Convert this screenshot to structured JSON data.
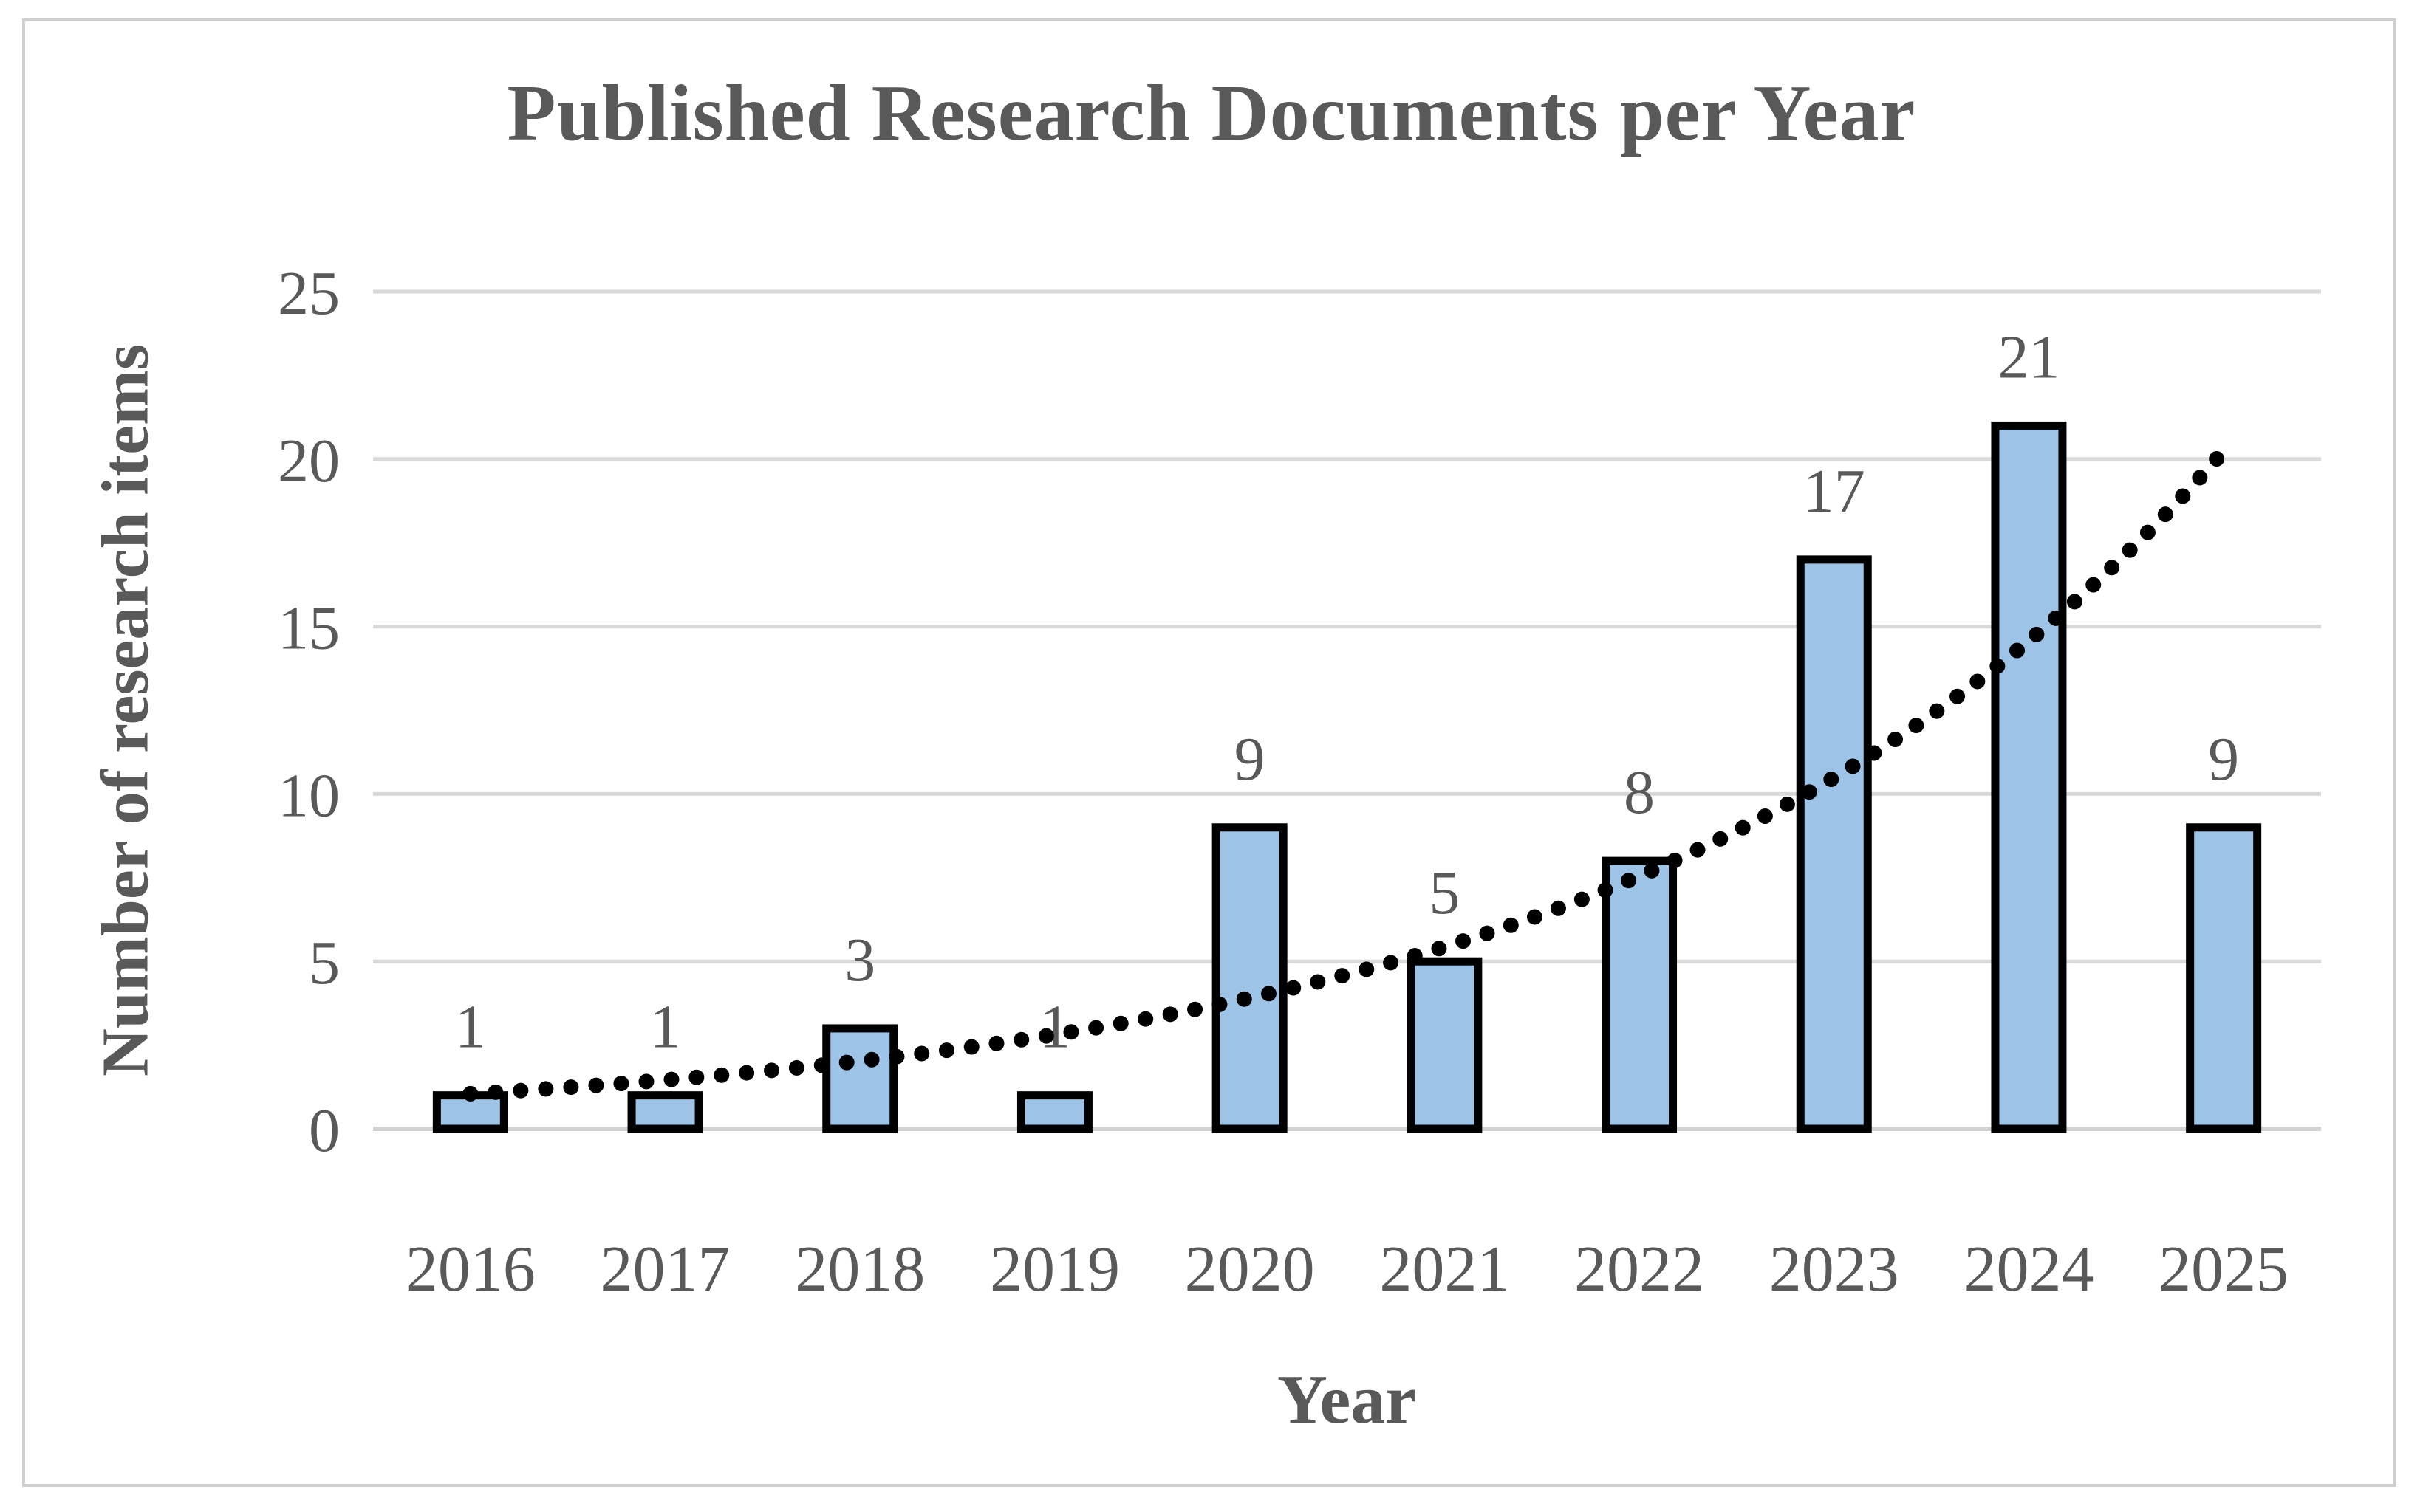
{
  "chart_data": {
    "type": "bar",
    "title": "Published Research Documents per Year",
    "xlabel": "Year",
    "ylabel": "Number of research items",
    "categories": [
      "2016",
      "2017",
      "2018",
      "2019",
      "2020",
      "2021",
      "2022",
      "2023",
      "2024",
      "2025"
    ],
    "values": [
      1,
      1,
      3,
      1,
      9,
      5,
      8,
      17,
      21,
      9
    ],
    "data_labels": [
      "1",
      "1",
      "3",
      "1",
      "9",
      "5",
      "8",
      "17",
      "21",
      "9"
    ],
    "yticks": [
      0,
      5,
      10,
      15,
      20,
      25
    ],
    "ylim": [
      0,
      25
    ],
    "grid": true,
    "legend": "none",
    "colors": {
      "bar_fill": "#9DC3E6",
      "bar_border": "#000000",
      "gridline": "#D9D9D9",
      "axis_line": "#D3D3D3",
      "text": "#595959",
      "trendline": "#000000",
      "frame_border": "#CFCFCF",
      "background": "#FFFFFF"
    },
    "trendline": {
      "style": "dotted",
      "shape": "exponential",
      "a": 0.7557,
      "b": 0.3288,
      "t_start": 1,
      "t_end": 9.97,
      "approx_start_value": 1.05,
      "approx_end_value": 20.3
    }
  }
}
